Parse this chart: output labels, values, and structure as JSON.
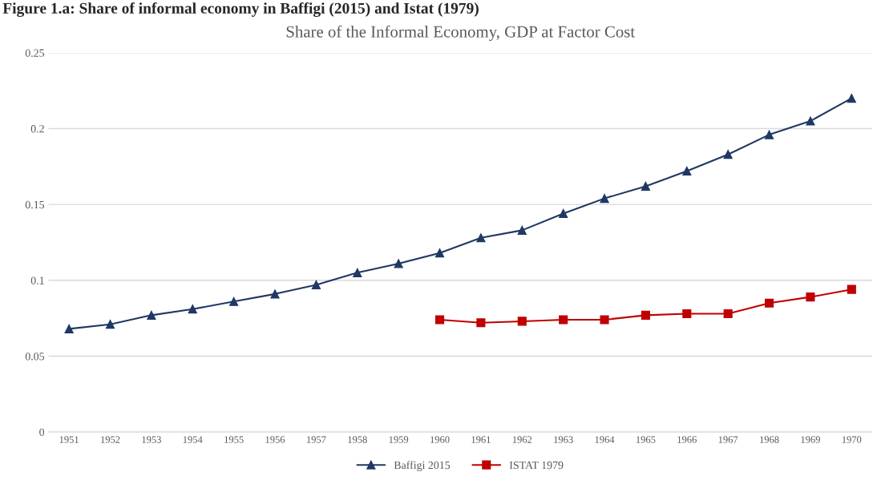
{
  "chart_data": {
    "type": "line",
    "title": "Share of the Informal Economy, GDP at Factor Cost",
    "annotations": [
      "Figure 1.a: Share of informal economy in Baffigi (2015) and Istat (1979)"
    ],
    "categories": [
      "1951",
      "1952",
      "1953",
      "1954",
      "1955",
      "1956",
      "1957",
      "1958",
      "1959",
      "1960",
      "1961",
      "1962",
      "1963",
      "1964",
      "1965",
      "1966",
      "1967",
      "1968",
      "1969",
      "1970"
    ],
    "series": [
      {
        "name": "Baffigi 2015",
        "color": "#203864",
        "marker": "triangle",
        "values": [
          0.068,
          0.071,
          0.077,
          0.081,
          0.086,
          0.091,
          0.097,
          0.105,
          0.111,
          0.118,
          0.128,
          0.133,
          0.144,
          0.154,
          0.162,
          0.172,
          0.183,
          0.196,
          0.205,
          0.22
        ]
      },
      {
        "name": "ISTAT 1979",
        "color": "#c00000",
        "marker": "square",
        "values": [
          null,
          null,
          null,
          null,
          null,
          null,
          null,
          null,
          null,
          0.074,
          0.072,
          0.073,
          0.074,
          0.074,
          0.077,
          0.078,
          0.078,
          0.085,
          0.089,
          0.094
        ]
      }
    ],
    "ylim": [
      0,
      0.25
    ],
    "yticks": [
      0,
      0.05,
      0.1,
      0.15,
      0.2,
      0.25
    ],
    "grid": "y",
    "legend": "bottom",
    "line_style": "solid"
  }
}
